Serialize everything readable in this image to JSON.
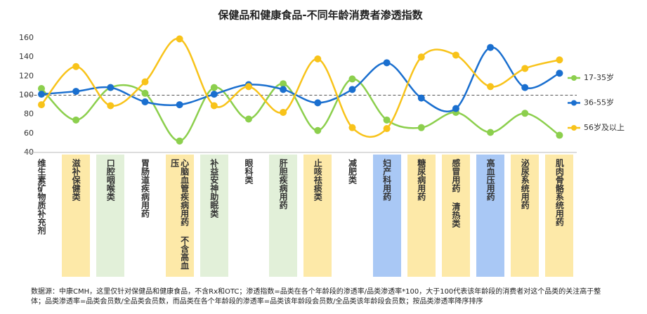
{
  "chart_data": {
    "type": "line",
    "title": "保健品和健康食品-不同年龄消费者渗透指数",
    "categories": [
      "维生素矿物质补充剂",
      "滋补保健类",
      "口腔咽喉类",
      "胃肠道疾病用药",
      "心脑血管疾病用药 不含高血压",
      "补益安神助眠类",
      "眼科类",
      "肝胆疾病用药",
      "止咳祛痰类",
      "减肥类",
      "妇产科用药",
      "糖尿病用药",
      "感冒用药 清热类",
      "高血压用药",
      "泌尿系统用药",
      "肌肉骨骼系统用药"
    ],
    "category_colors": [
      null,
      "#fde9a8",
      "#e2f0d9",
      null,
      "#fde9a8",
      "#e2f0d9",
      null,
      "#e2f0d9",
      "#fde9a8",
      null,
      "#a9c8f5",
      "#fde9a8",
      "#fde9a8",
      "#a9c8f5",
      "#fde9a8",
      "#fde9a8"
    ],
    "series": [
      {
        "name": "17-35岁",
        "color": "#8ccf4d",
        "values": [
          107,
          74,
          108,
          102,
          52,
          108,
          75,
          112,
          63,
          117,
          74,
          66,
          82,
          61,
          81,
          58
        ]
      },
      {
        "name": "36-55岁",
        "color": "#1a6fcf",
        "values": [
          101,
          104,
          108,
          93,
          90,
          101,
          111,
          106,
          92,
          106,
          134,
          97,
          86,
          150,
          108,
          123
        ]
      },
      {
        "name": "56岁及以上",
        "color": "#f8c31a",
        "values": [
          90,
          130,
          89,
          114,
          159,
          89,
          109,
          82,
          138,
          66,
          65,
          140,
          142,
          109,
          128,
          137
        ]
      }
    ],
    "ylim": [
      40,
      160
    ],
    "yticks": [
      40,
      60,
      80,
      100,
      120,
      140,
      160
    ],
    "reference_line": 100,
    "smooth": true,
    "legend": "right",
    "note": "数据源：中康CMH，这里仅针对保健品和健康食品，不含Rx和OTC；渗透指数=品类在各个年龄段的渗透率/品类渗透率*100，大于100代表该年龄段的消费者对这个品类的关注高于整体；品类渗透率=品类会员数/全品类会员数，而品类在各个年龄段的渗透率=品类该年龄段会员数/全品类该年龄段会员数；按品类渗透率降序排序"
  }
}
